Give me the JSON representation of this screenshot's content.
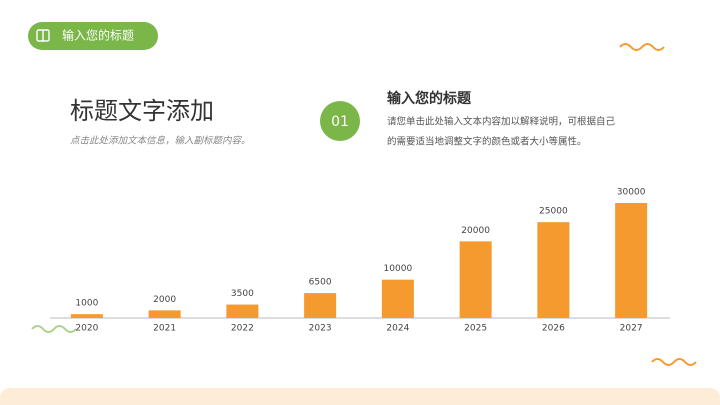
{
  "header": {
    "tag": "输入您的标题",
    "title": "标题文字添加",
    "subtitle": "点击此处添加文本信息，输入副标题内容。"
  },
  "point": {
    "number": "01",
    "title": "输入您的标题",
    "lines": [
      "请您单击此处输入文本内容加以解释说明，可根据自己",
      "的需要适当地调整文字的颜色或者大小等属性。"
    ]
  },
  "chart_data": {
    "type": "bar",
    "categories": [
      "2020",
      "2021",
      "2022",
      "2023",
      "2024",
      "2025",
      "2026",
      "2027"
    ],
    "values": [
      1000,
      2000,
      3500,
      6500,
      10000,
      20000,
      25000,
      30000
    ],
    "color": "#f59a2f",
    "ylim": [
      0,
      30000
    ]
  }
}
